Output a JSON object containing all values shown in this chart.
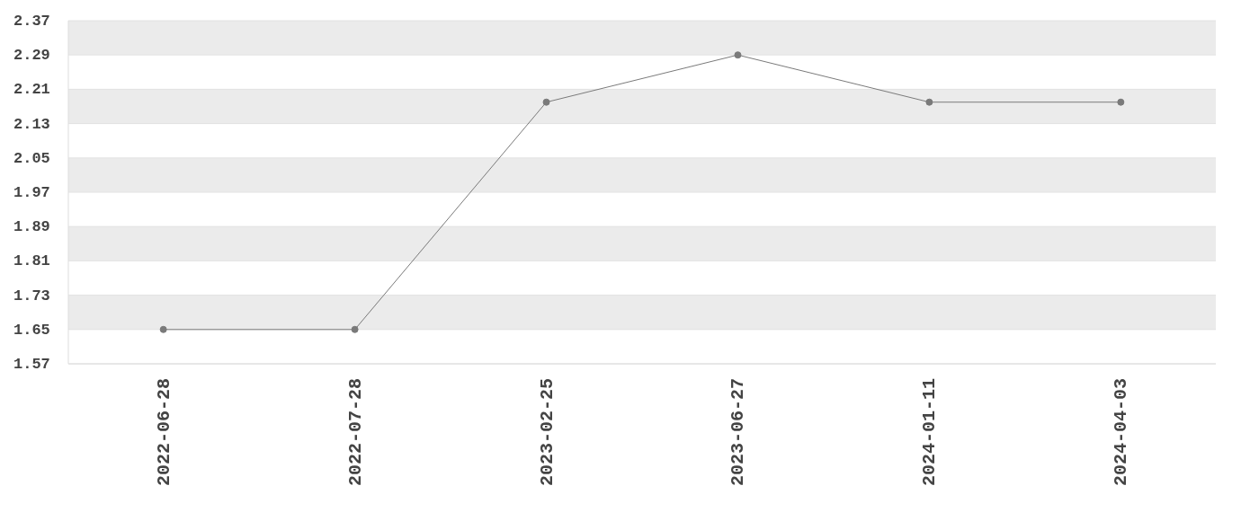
{
  "chart_data": {
    "type": "line",
    "categories": [
      "2022-06-28",
      "2022-07-28",
      "2023-02-25",
      "2023-06-27",
      "2024-01-11",
      "2024-04-03"
    ],
    "series": [
      {
        "color": "#7a7a7a",
        "values": [
          1.65,
          1.65,
          2.18,
          2.29,
          2.18,
          2.18
        ]
      }
    ],
    "ylim": [
      1.57,
      2.37
    ],
    "yticks": [
      1.57,
      1.65,
      1.73,
      1.81,
      1.89,
      1.97,
      2.05,
      2.13,
      2.21,
      2.29,
      2.37
    ],
    "grid": "y",
    "marker": "circle",
    "line_style": "solid"
  }
}
